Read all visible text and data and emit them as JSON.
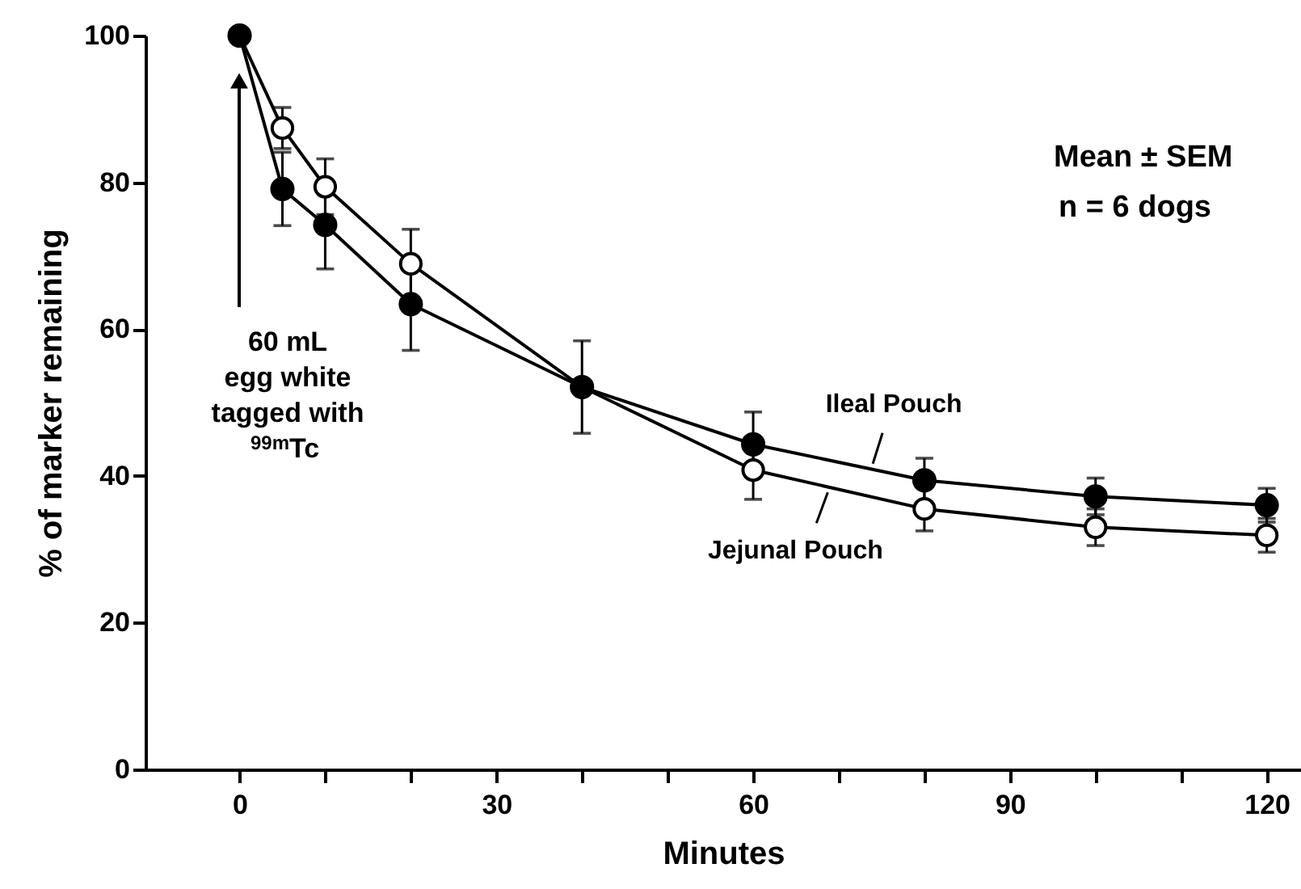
{
  "chart_data": {
    "type": "line",
    "xlabel": "Minutes",
    "ylabel": "% of marker remaining",
    "x": [
      0,
      5,
      10,
      20,
      40,
      60,
      80,
      100,
      120
    ],
    "series": [
      {
        "color": "#000000",
        "values": [
          100,
          79.1,
          74.2,
          63.4,
          52.1,
          44.3,
          39.4,
          37.2,
          36.0
        ],
        "errors": [
          null,
          5,
          6,
          6.3,
          null,
          4.4,
          3,
          2.5,
          2.3
        ]
      },
      {
        "color": "#000000",
        "values": [
          100,
          87.4,
          79.4,
          68.9,
          52.1,
          40.8,
          35.5,
          33.0,
          31.9
        ],
        "errors": [
          null,
          2.8,
          3.8,
          4.7,
          6.3,
          4,
          3,
          2.5,
          2.3
        ]
      }
    ],
    "xlim": [
      -11,
      124
    ],
    "ylim": [
      0,
      100
    ],
    "xticks": [
      0,
      {
        "value": 10,
        "label": null
      },
      {
        "value": 20,
        "label": null
      },
      30,
      {
        "value": 40,
        "label": null
      },
      {
        "value": 50,
        "label": null
      },
      60,
      {
        "value": 70,
        "label": null
      },
      {
        "value": 80,
        "label": null
      },
      90,
      {
        "value": 100,
        "label": null
      },
      {
        "value": 110,
        "label": null
      },
      120
    ],
    "yticks": [
      0,
      20,
      40,
      60,
      80,
      100
    ],
    "marker": "circle",
    "grid": false,
    "annotations": [
      "60 mL\negg white\ntagged with\n$^{99m}$Tc",
      "Mean ± SEM",
      "n = 6 dogs",
      {
        "text": "Ileal Pouch",
        "x": 73.6,
        "y": 41.0
      },
      {
        "text": "Jejunal Pouch",
        "x": 68.9,
        "y": 38.4
      }
    ]
  }
}
